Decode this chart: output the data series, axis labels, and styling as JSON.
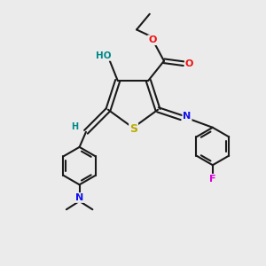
{
  "bg_color": "#ebebeb",
  "bond_color": "#1a1a1a",
  "atom_colors": {
    "O": "#ee1111",
    "N": "#1111ee",
    "S": "#bbaa00",
    "F": "#dd00dd",
    "HO": "#008888",
    "H": "#008888"
  },
  "lw": 1.5,
  "fs": 8.0
}
